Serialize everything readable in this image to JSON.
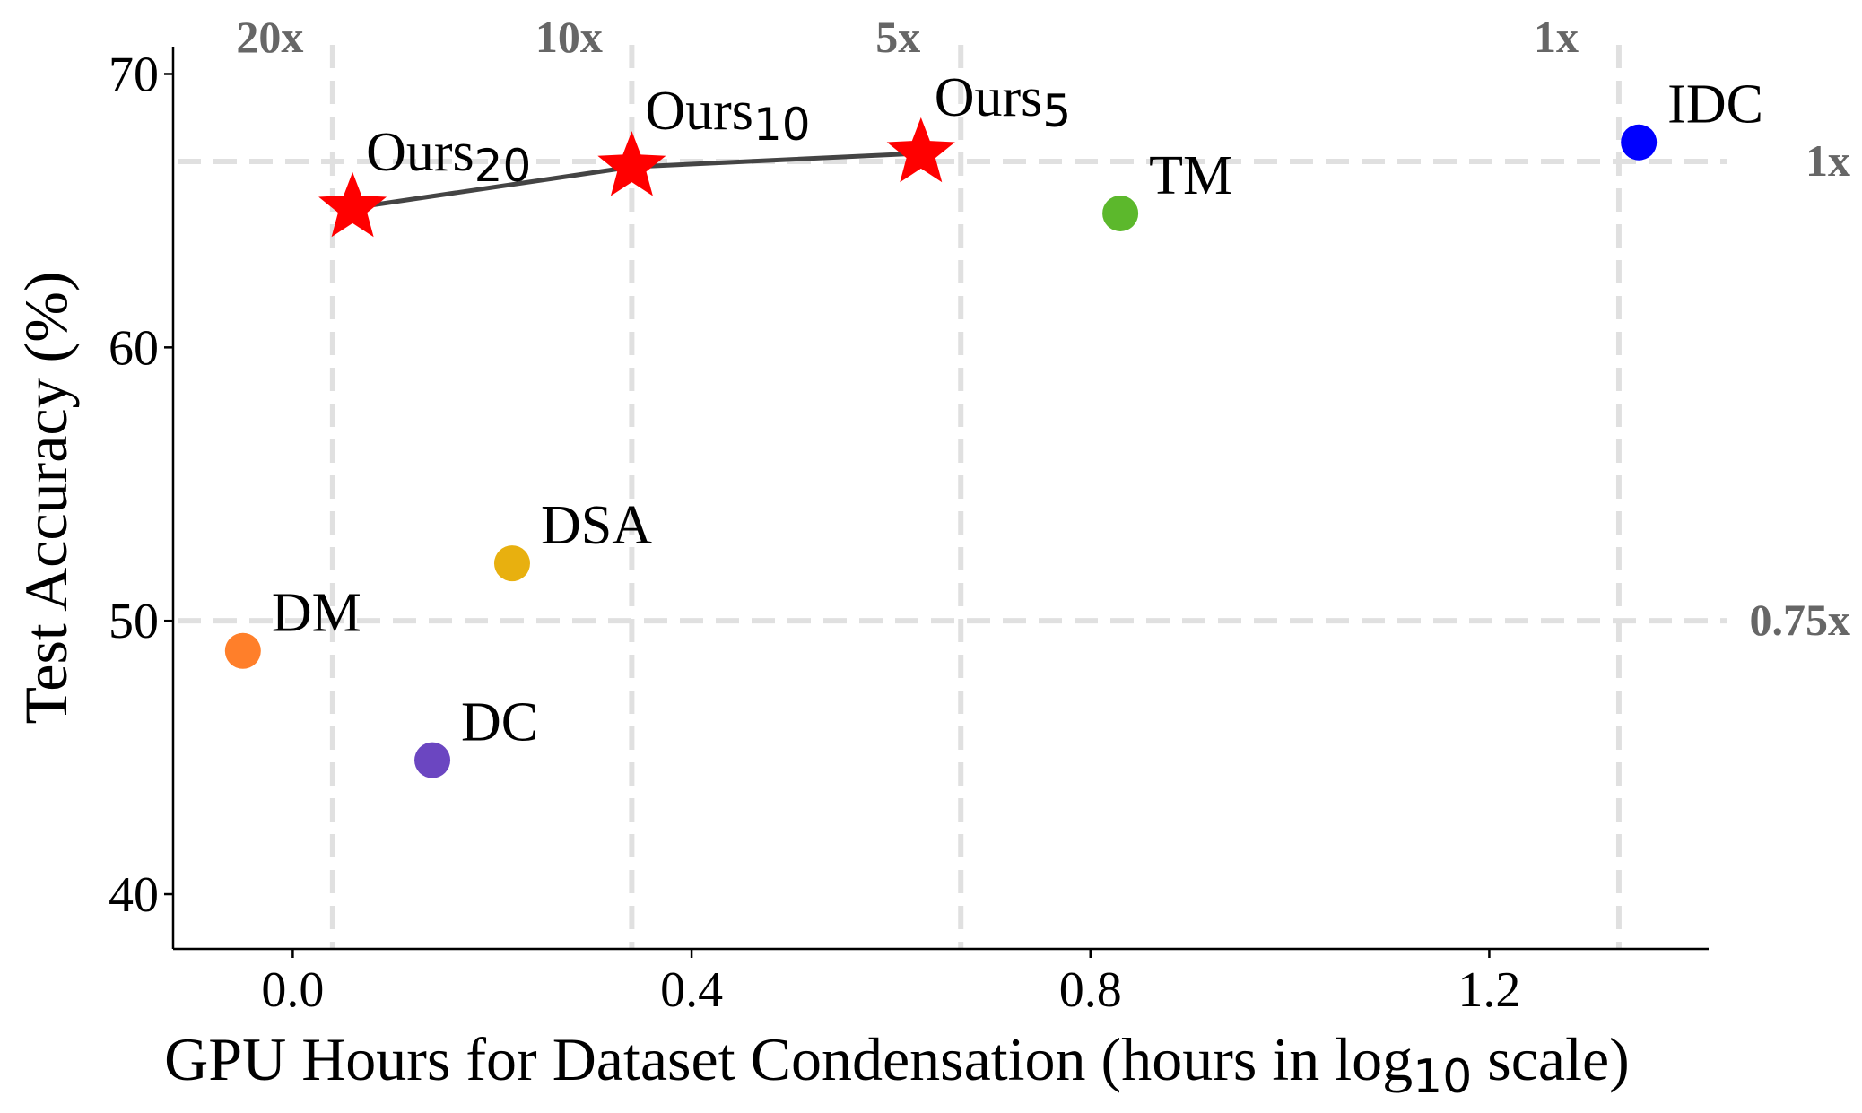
{
  "chart_data": {
    "type": "scatter",
    "xlabel_main": "GPU Hours for Dataset Condensation (hours in log",
    "xlabel_sub": "10",
    "xlabel_tail": " scale)",
    "ylabel": "Test  Accuracy (%)",
    "xlim": [
      -0.12,
      1.42
    ],
    "ylim": [
      38,
      71
    ],
    "x_ticks": [
      0.0,
      0.4,
      0.8,
      1.2
    ],
    "x_tick_labels": [
      "0.0",
      "0.4",
      "0.8",
      "1.2"
    ],
    "y_ticks": [
      40,
      50,
      60,
      70
    ],
    "y_tick_labels": [
      "40",
      "50",
      "60",
      "70"
    ],
    "reference_lines": {
      "vertical": [
        {
          "x": 0.04,
          "label": "20x"
        },
        {
          "x": 0.34,
          "label": "10x"
        },
        {
          "x": 0.67,
          "label": "5x"
        },
        {
          "x": 1.33,
          "label": "1x"
        }
      ],
      "horizontal": [
        {
          "y": 66.8,
          "label": "1x"
        },
        {
          "y": 50.0,
          "label": "0.75x"
        }
      ],
      "color": "#e0e0e0",
      "label_color": "#666666"
    },
    "baselines": [
      {
        "name": "DM",
        "x": -0.05,
        "y": 48.9,
        "color": "#ff7f2a"
      },
      {
        "name": "DC",
        "x": 0.14,
        "y": 44.9,
        "color": "#6b46c1"
      },
      {
        "name": "DSA",
        "x": 0.22,
        "y": 52.1,
        "color": "#e8b00f"
      },
      {
        "name": "TM",
        "x": 0.83,
        "y": 64.9,
        "color": "#5cb82c"
      },
      {
        "name": "IDC",
        "x": 1.35,
        "y": 67.5,
        "color": "#0000ff"
      }
    ],
    "ours": {
      "color": "#ff0000",
      "line_color": "#444444",
      "points": [
        {
          "base": "Ours",
          "sub": "20",
          "x": 0.06,
          "y": 65.1
        },
        {
          "base": "Ours",
          "sub": "10",
          "x": 0.34,
          "y": 66.6
        },
        {
          "base": "Ours",
          "sub": "5",
          "x": 0.63,
          "y": 67.1
        }
      ]
    },
    "grid": false
  }
}
